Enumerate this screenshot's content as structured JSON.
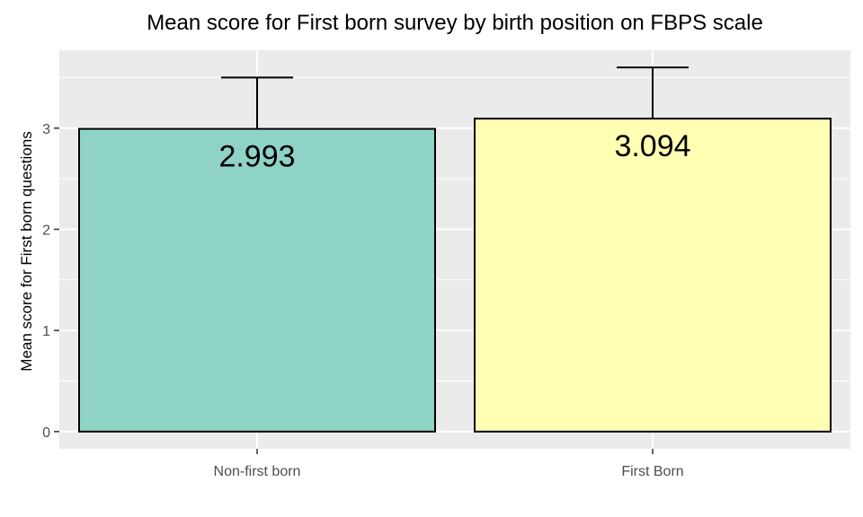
{
  "chart_data": {
    "type": "bar",
    "title": "Mean score for First born survey by birth position on FBPS scale",
    "xlabel": "",
    "ylabel": "Mean score for First born questions",
    "categories": [
      "Non-first born",
      "First Born"
    ],
    "values": [
      2.993,
      3.094
    ],
    "value_labels": [
      "2.993",
      "3.094"
    ],
    "error_upper": [
      3.5,
      3.6
    ],
    "colors": [
      "#8fd3c7",
      "#ffffb3"
    ],
    "ylim": [
      -0.17,
      3.77
    ],
    "yticks": [
      0,
      1,
      2,
      3
    ],
    "grid": true,
    "panel_background": "#ebebeb",
    "legend": "none"
  }
}
